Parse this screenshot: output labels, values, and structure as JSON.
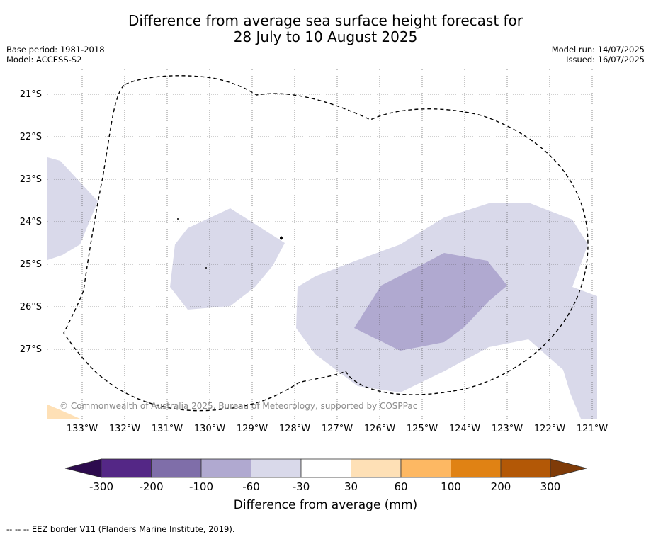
{
  "title_line1": "Difference from average sea surface height forecast for",
  "title_line2": "28 July to 10 August 2025",
  "base_period": "Base period: 1981-2018",
  "model": "Model: ACCESS-S2",
  "model_run": "Model run: 14/07/2025",
  "issued": "Issued: 16/07/2025",
  "copyright": "© Commonwealth of Australia 2025, Bureau of Meteorology, supported by COSPPac",
  "lat_labels": [
    "21°S",
    "22°S",
    "23°S",
    "24°S",
    "25°S",
    "26°S",
    "27°S"
  ],
  "lon_labels": [
    "133°W",
    "132°W",
    "131°W",
    "130°W",
    "129°W",
    "128°W",
    "127°W",
    "126°W",
    "125°W",
    "124°W",
    "123°W",
    "122°W",
    "121°W"
  ],
  "colorbar": {
    "title": "Difference from average (mm)",
    "ticks": [
      "-300",
      "-200",
      "-100",
      "-60",
      "-30",
      "30",
      "60",
      "100",
      "200",
      "300"
    ],
    "colors": [
      "#2d0b4e",
      "#542786",
      "#7f6ea9",
      "#b0a9d0",
      "#d9d9ea",
      "#ffffff",
      "#fee0b6",
      "#fdb863",
      "#e08214",
      "#b35806",
      "#7f3b08"
    ]
  },
  "footnote": "--  --  -- EEZ border V11 (Flanders Marine Institute, 2019)."
}
